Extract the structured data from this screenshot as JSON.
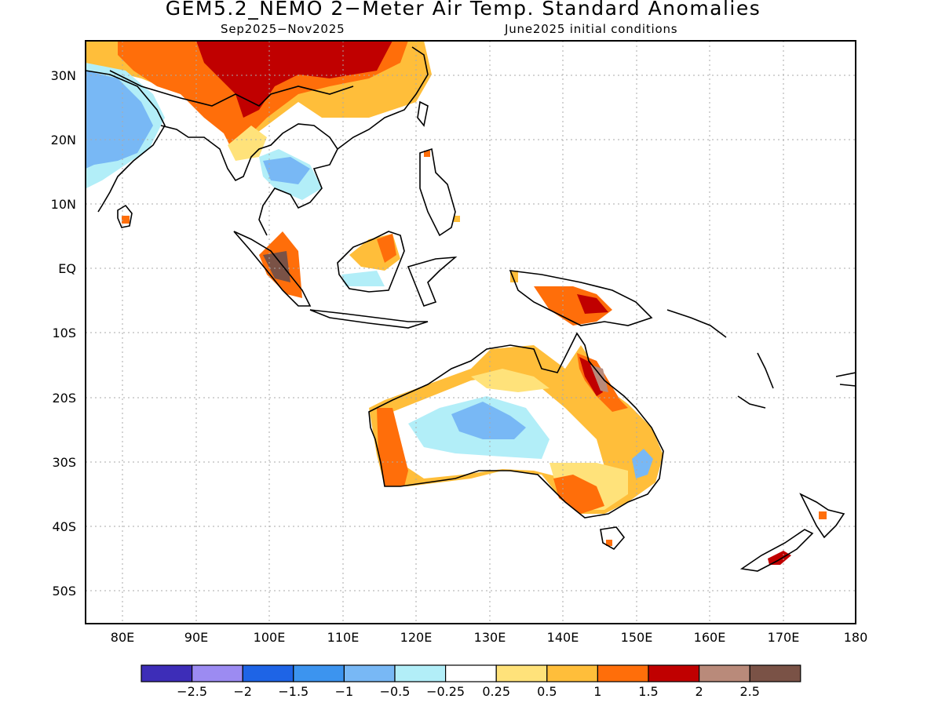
{
  "title": "GEM5.2_NEMO 2−Meter Air Temp. Standard Anomalies",
  "subtitle_left": "Sep2025−Nov2025",
  "subtitle_right": "June2025 initial conditions",
  "map": {
    "lon_range": [
      75,
      180
    ],
    "lat_range": [
      -55,
      35
    ],
    "grid": "dotted",
    "y_ticks": [
      "30N",
      "20N",
      "10N",
      "EQ",
      "10S",
      "20S",
      "30S",
      "40S",
      "50S"
    ],
    "x_ticks": [
      "80E",
      "90E",
      "100E",
      "110E",
      "120E",
      "130E",
      "140E",
      "150E",
      "160E",
      "170E",
      "180"
    ]
  },
  "colorbar": {
    "labels": [
      "−2.5",
      "−2",
      "−1.5",
      "−1",
      "−0.5",
      "−0.25",
      "0.25",
      "0.5",
      "1",
      "1.5",
      "2",
      "2.5"
    ],
    "colors": [
      "#3d2db8",
      "#9c8bf2",
      "#1e64e6",
      "#3c94ef",
      "#78b8f5",
      "#b2eef8",
      "#ffffff",
      "#ffe27a",
      "#ffbe3a",
      "#ff6e0a",
      "#c00000",
      "#b98a7a",
      "#7a5246"
    ]
  }
}
